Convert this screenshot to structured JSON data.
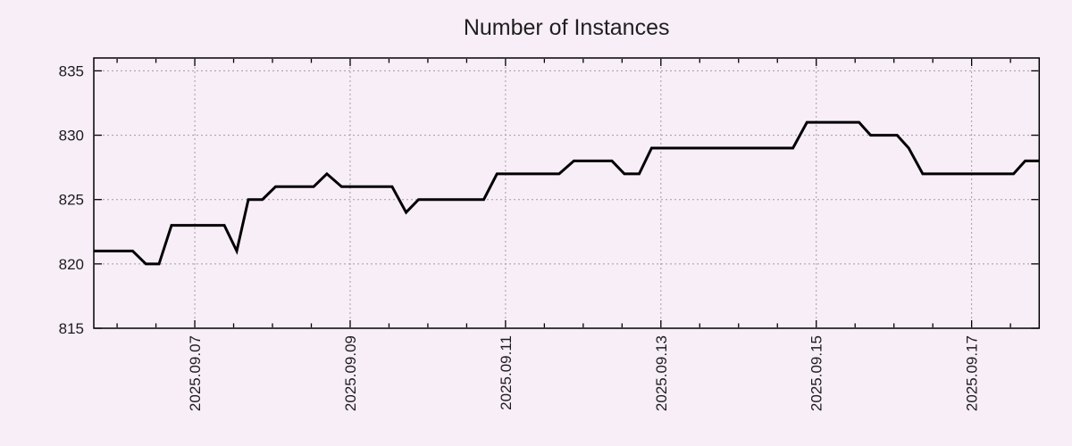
{
  "colors": {
    "background": "#f8eef8",
    "line": "#000000",
    "grid": "#9e9e9e",
    "axis": "#000000",
    "text": "#1c1c1c"
  },
  "chart_data": {
    "type": "line",
    "title": "Number of Instances",
    "xlabel": "",
    "ylabel": "",
    "grid": true,
    "legend": false,
    "x_axis": {
      "origin_label": "2025.09.07",
      "tick_labels": [
        "2025.09.07",
        "2025.09.09",
        "2025.09.11",
        "2025.09.13",
        "2025.09.15",
        "2025.09.17"
      ],
      "tick_day_offsets": [
        0,
        2,
        4,
        6,
        8,
        10
      ],
      "minor_tick_interval_days": 0.5,
      "minor_tick_start": -1.0,
      "minor_tick_end": 10.5,
      "range_days": [
        -1.3,
        10.87
      ]
    },
    "y_axis": {
      "ticks": [
        815,
        820,
        825,
        830,
        835
      ],
      "range": [
        815,
        836
      ]
    },
    "series": [
      {
        "name": "instances",
        "points": [
          {
            "t": "2025-09-05 17:00",
            "d": -1.3,
            "v": 821
          },
          {
            "t": "2025-09-06 05:00",
            "d": -0.8,
            "v": 821
          },
          {
            "t": "2025-09-06 09:00",
            "d": -0.63,
            "v": 820
          },
          {
            "t": "2025-09-06 13:00",
            "d": -0.46,
            "v": 820
          },
          {
            "t": "2025-09-06 17:00",
            "d": -0.3,
            "v": 823
          },
          {
            "t": "2025-09-07 09:00",
            "d": 0.38,
            "v": 823
          },
          {
            "t": "2025-09-07 13:00",
            "d": 0.54,
            "v": 821
          },
          {
            "t": "2025-09-07 17:00",
            "d": 0.69,
            "v": 825
          },
          {
            "t": "2025-09-07 21:00",
            "d": 0.87,
            "v": 825
          },
          {
            "t": "2025-09-08 01:00",
            "d": 1.04,
            "v": 826
          },
          {
            "t": "2025-09-08 13:00",
            "d": 1.53,
            "v": 826
          },
          {
            "t": "2025-09-08 17:00",
            "d": 1.7,
            "v": 827
          },
          {
            "t": "2025-09-08 21:00",
            "d": 1.89,
            "v": 826
          },
          {
            "t": "2025-09-09 13:00",
            "d": 2.54,
            "v": 826
          },
          {
            "t": "2025-09-09 17:00",
            "d": 2.72,
            "v": 824
          },
          {
            "t": "2025-09-09 21:00",
            "d": 2.88,
            "v": 825
          },
          {
            "t": "2025-09-10 17:00",
            "d": 3.72,
            "v": 825
          },
          {
            "t": "2025-09-10 21:00",
            "d": 3.89,
            "v": 827
          },
          {
            "t": "2025-09-11 17:00",
            "d": 4.69,
            "v": 827
          },
          {
            "t": "2025-09-11 21:00",
            "d": 4.88,
            "v": 828
          },
          {
            "t": "2025-09-12 09:00",
            "d": 5.37,
            "v": 828
          },
          {
            "t": "2025-09-12 13:00",
            "d": 5.53,
            "v": 827
          },
          {
            "t": "2025-09-12 17:00",
            "d": 5.72,
            "v": 827
          },
          {
            "t": "2025-09-12 21:00",
            "d": 5.88,
            "v": 829
          },
          {
            "t": "2025-09-14 17:00",
            "d": 7.7,
            "v": 829
          },
          {
            "t": "2025-09-14 21:00",
            "d": 7.88,
            "v": 831
          },
          {
            "t": "2025-09-15 13:00",
            "d": 8.55,
            "v": 831
          },
          {
            "t": "2025-09-15 17:00",
            "d": 8.7,
            "v": 830
          },
          {
            "t": "2025-09-16 01:00",
            "d": 9.04,
            "v": 830
          },
          {
            "t": "2025-09-16 05:00",
            "d": 9.19,
            "v": 829
          },
          {
            "t": "2025-09-16 09:00",
            "d": 9.37,
            "v": 827
          },
          {
            "t": "2025-09-17 13:00",
            "d": 10.54,
            "v": 827
          },
          {
            "t": "2025-09-17 17:00",
            "d": 10.69,
            "v": 828
          },
          {
            "t": "2025-09-17 21:00",
            "d": 10.87,
            "v": 828
          }
        ]
      }
    ]
  }
}
